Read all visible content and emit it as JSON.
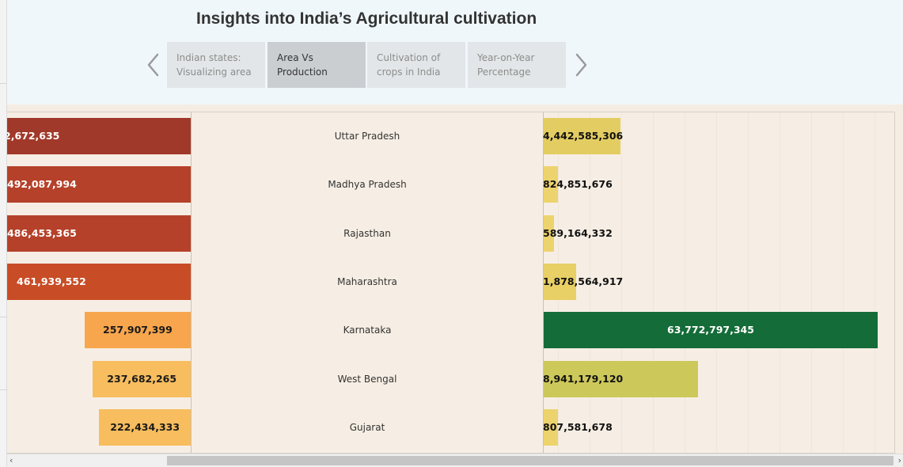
{
  "header": {
    "title": "Insights into India’s Agricultural cultivation",
    "tabs": [
      {
        "line1": "Indian states:",
        "line2": "Visualizing area",
        "active": false
      },
      {
        "line1": "Area Vs",
        "line2": "Production",
        "active": true
      },
      {
        "line1": "Cultivation of",
        "line2": "crops in India",
        "active": false
      },
      {
        "line1": "Year-on-Year",
        "line2": "Percentage",
        "active": false
      }
    ],
    "prev_icon": "chevron-left-icon",
    "next_icon": "chevron-right-icon"
  },
  "chart_data": {
    "type": "bar",
    "categories": [
      "Uttar Pradesh",
      "Madhya Pradesh",
      "Rajasthan",
      "Maharashtra",
      "Karnataka",
      "West Bengal",
      "Gujarat"
    ],
    "left_labels": [
      "2,672,635",
      "492,087,994",
      "486,453,365",
      "461,939,552",
      "257,907,399",
      "237,682,265",
      "222,434,333"
    ],
    "right_values": [
      4442585306,
      824851676,
      589164332,
      1878564917,
      63772797345,
      8941179120,
      807581678
    ],
    "right_labels": [
      "4,442,585,306",
      "824,851,676",
      "589,164,332",
      "1,878,564,917",
      "63,772,797,345",
      "8,941,179,120",
      "807,581,678"
    ],
    "left_colors": [
      "#a1392a",
      "#b5412a",
      "#b5412a",
      "#c84c25",
      "#f8a64d",
      "#f7bd5e",
      "#f7bd5e"
    ],
    "right_colors": [
      "#e3cd62",
      "#edd36e",
      "#edd36e",
      "#e8cf66",
      "#146c38",
      "#cdc85a",
      "#edd36e"
    ]
  },
  "scrollbar": {
    "left_arrow": "‹",
    "right_arrow": "›"
  }
}
